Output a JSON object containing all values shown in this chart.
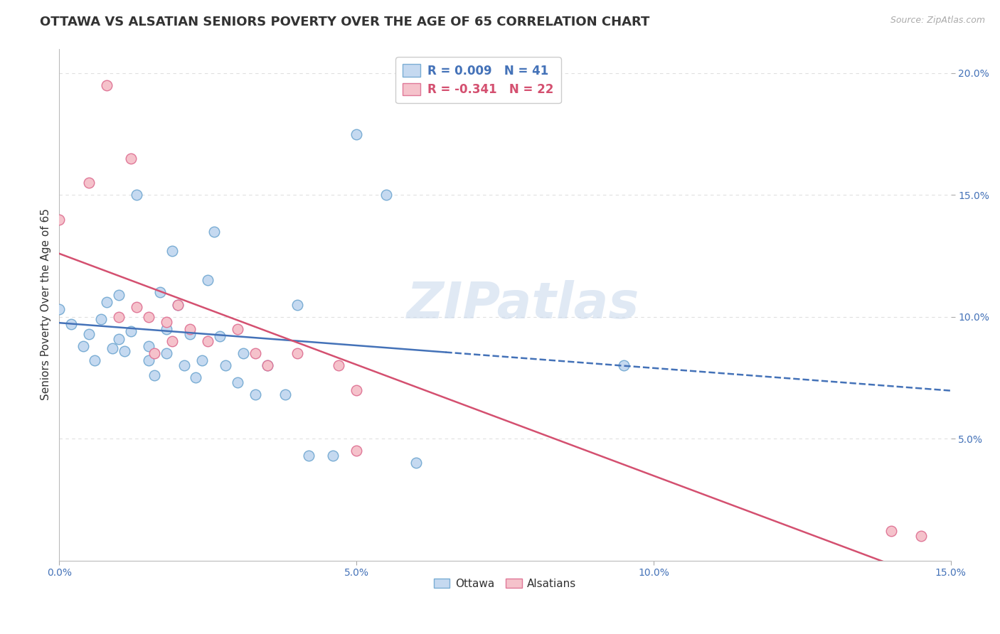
{
  "title": "OTTAWA VS ALSATIAN SENIORS POVERTY OVER THE AGE OF 65 CORRELATION CHART",
  "source": "Source: ZipAtlas.com",
  "ylabel": "Seniors Poverty Over the Age of 65",
  "xlim": [
    0.0,
    0.15
  ],
  "ylim": [
    0.0,
    0.21
  ],
  "x_ticks": [
    0.0,
    0.05,
    0.1,
    0.15
  ],
  "x_tick_labels": [
    "0.0%",
    "5.0%",
    "10.0%",
    "15.0%"
  ],
  "y_ticks": [
    0.05,
    0.1,
    0.15,
    0.2
  ],
  "y_tick_labels": [
    "5.0%",
    "10.0%",
    "15.0%",
    "20.0%"
  ],
  "ottawa_color": "#c5d9f0",
  "ottawa_edge_color": "#7aadd4",
  "alsatian_color": "#f5c2cb",
  "alsatian_edge_color": "#e07898",
  "ottawa_R": 0.009,
  "ottawa_N": 41,
  "alsatian_R": -0.341,
  "alsatian_N": 22,
  "ottawa_x": [
    0.0,
    0.002,
    0.004,
    0.005,
    0.006,
    0.007,
    0.008,
    0.009,
    0.01,
    0.01,
    0.011,
    0.012,
    0.013,
    0.015,
    0.015,
    0.016,
    0.017,
    0.018,
    0.018,
    0.019,
    0.02,
    0.021,
    0.022,
    0.023,
    0.024,
    0.025,
    0.026,
    0.027,
    0.028,
    0.03,
    0.031,
    0.033,
    0.035,
    0.038,
    0.04,
    0.042,
    0.046,
    0.05,
    0.055,
    0.06,
    0.095
  ],
  "ottawa_y": [
    0.103,
    0.097,
    0.088,
    0.093,
    0.082,
    0.099,
    0.106,
    0.087,
    0.091,
    0.109,
    0.086,
    0.094,
    0.15,
    0.082,
    0.088,
    0.076,
    0.11,
    0.085,
    0.095,
    0.127,
    0.105,
    0.08,
    0.093,
    0.075,
    0.082,
    0.115,
    0.135,
    0.092,
    0.08,
    0.073,
    0.085,
    0.068,
    0.08,
    0.068,
    0.105,
    0.043,
    0.043,
    0.175,
    0.15,
    0.04,
    0.08
  ],
  "alsatian_x": [
    0.0,
    0.005,
    0.008,
    0.01,
    0.012,
    0.013,
    0.015,
    0.016,
    0.018,
    0.019,
    0.02,
    0.022,
    0.025,
    0.03,
    0.033,
    0.035,
    0.04,
    0.047,
    0.05,
    0.05,
    0.14,
    0.145
  ],
  "alsatian_y": [
    0.14,
    0.155,
    0.195,
    0.1,
    0.165,
    0.104,
    0.1,
    0.085,
    0.098,
    0.09,
    0.105,
    0.095,
    0.09,
    0.095,
    0.085,
    0.08,
    0.085,
    0.08,
    0.045,
    0.07,
    0.012,
    0.01
  ],
  "background_color": "#ffffff",
  "grid_color": "#e0e0e0",
  "watermark": "ZIPatlas",
  "title_fontsize": 13,
  "axis_label_fontsize": 11,
  "tick_fontsize": 10,
  "marker_size": 110,
  "marker_linewidth": 1.0,
  "trend_ottawa_color": "#4472b8",
  "trend_alsatian_color": "#d45070",
  "trend_linewidth": 1.8,
  "trend_ottawa_dashed_start": 0.065
}
